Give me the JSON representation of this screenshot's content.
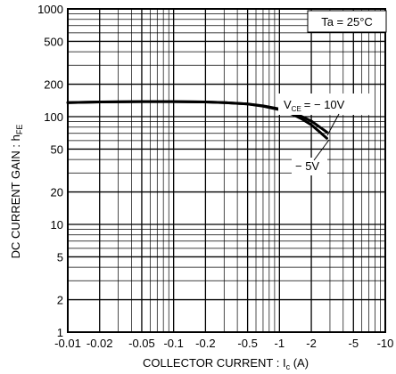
{
  "chart_data": {
    "type": "line",
    "title": "",
    "xlabel": "COLLECTOR CURRENT : I",
    "xlabel_sub": "c",
    "xlabel_unit": " (A)",
    "ylabel": "DC CURRENT GAIN : h",
    "ylabel_sub": "FE",
    "x_scale": "log",
    "y_scale": "log",
    "xlim": [
      0.01,
      10
    ],
    "ylim": [
      1,
      1000
    ],
    "grid": true,
    "x_ticks": [
      0.01,
      0.02,
      0.05,
      0.1,
      0.2,
      0.5,
      1,
      2,
      5,
      10
    ],
    "x_tick_labels": [
      "-0.01",
      "-0.02",
      "-0.05",
      "-0.1",
      "-0.2",
      "-0.5",
      "-1",
      "-2",
      "-5",
      "-10"
    ],
    "y_ticks": [
      1,
      2,
      5,
      10,
      20,
      50,
      100,
      200,
      500,
      1000
    ],
    "y_tick_labels": [
      "1",
      "2",
      "5",
      "10",
      "20",
      "50",
      "100",
      "200",
      "500",
      "1000"
    ],
    "annotations": {
      "temperature": "Ta = 25°C",
      "vce_label": "V",
      "vce_sub": "CE",
      "vce_value": "= − 10V",
      "vce_5v": "− 5V"
    },
    "series": [
      {
        "x": [
          0.01,
          0.02,
          0.05,
          0.1,
          0.2,
          0.3,
          0.5,
          0.7,
          1.0,
          1.3,
          1.6,
          2.0,
          2.4,
          2.8
        ],
        "y": [
          135,
          137,
          138,
          138,
          137,
          135,
          131,
          126,
          118,
          110,
          101,
          91,
          80,
          72
        ],
        "color": "#000000"
      },
      {
        "x": [
          0.01,
          0.02,
          0.05,
          0.1,
          0.2,
          0.3,
          0.5,
          0.7,
          1.0,
          1.3,
          1.6,
          2.0,
          2.4,
          2.8
        ],
        "y": [
          135,
          137,
          138,
          138,
          137,
          135,
          131,
          125,
          116,
          106,
          96,
          84,
          72,
          63
        ],
        "color": "#000000"
      }
    ]
  }
}
